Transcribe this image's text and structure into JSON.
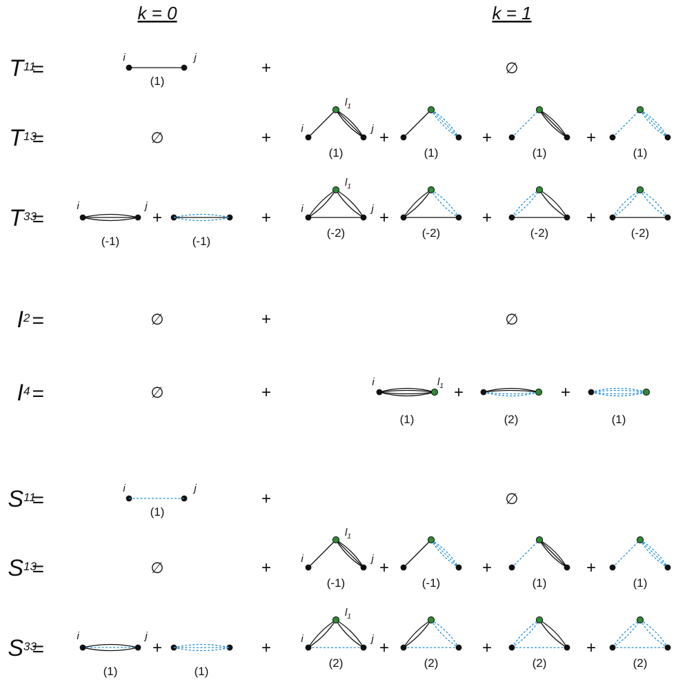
{
  "headers": {
    "k0": "k = 0",
    "k1": "k = 1"
  },
  "equals": "=",
  "plus": "+",
  "empty_set": "∅",
  "vertex_labels": {
    "i": "i",
    "j": "j",
    "l": "l",
    "l_sub": "1"
  },
  "rows": [
    {
      "id": "T11",
      "letter": "T",
      "sup": "11",
      "k0_coeffs": [
        "(1)"
      ],
      "k0_empty": false,
      "k1_coeffs": [],
      "k1_empty": true
    },
    {
      "id": "T13",
      "letter": "T",
      "sup": "13",
      "k0_coeffs": [],
      "k0_empty": true,
      "k1_coeffs": [
        "(1)",
        "(1)",
        "(1)",
        "(1)"
      ],
      "k1_empty": false
    },
    {
      "id": "T33",
      "letter": "T",
      "sup": "33",
      "k0_coeffs": [
        "(-1)",
        "(-1)"
      ],
      "k0_empty": false,
      "k1_coeffs": [
        "(-2)",
        "(-2)",
        "(-2)",
        "(-2)"
      ],
      "k1_empty": false
    },
    {
      "id": "I2",
      "letter": "I",
      "sup": "2",
      "k0_coeffs": [],
      "k0_empty": true,
      "k1_coeffs": [],
      "k1_empty": true
    },
    {
      "id": "I4",
      "letter": "I",
      "sup": "4",
      "k0_coeffs": [],
      "k0_empty": true,
      "k1_coeffs": [
        "(1)",
        "(2)",
        "(1)"
      ],
      "k1_empty": false
    },
    {
      "id": "S11",
      "letter": "S",
      "sup": "11",
      "k0_coeffs": [
        "(1)"
      ],
      "k0_empty": false,
      "k1_coeffs": [],
      "k1_empty": true
    },
    {
      "id": "S13",
      "letter": "S",
      "sup": "13",
      "k0_coeffs": [],
      "k0_empty": true,
      "k1_coeffs": [
        "(-1)",
        "(-1)",
        "(1)",
        "(1)"
      ],
      "k1_empty": false
    },
    {
      "id": "S33",
      "letter": "S",
      "sup": "33",
      "k0_coeffs": [
        "(1)",
        "(1)"
      ],
      "k0_empty": false,
      "k1_coeffs": [
        "(2)",
        "(2)",
        "(2)",
        "(2)"
      ],
      "k1_empty": false
    }
  ]
}
